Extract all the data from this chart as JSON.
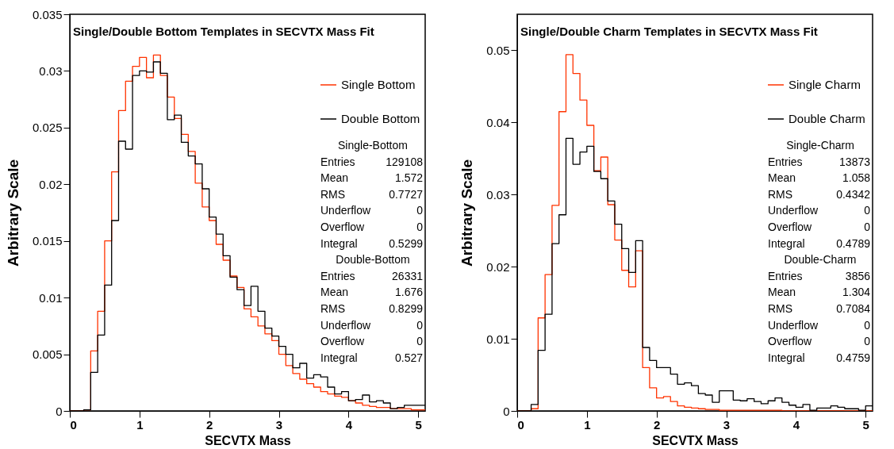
{
  "chart_data": [
    {
      "type": "histogram",
      "title": "Single/Double Bottom Templates in SECVTX Mass Fit",
      "xlabel": "SECVTX Mass",
      "ylabel": "Arbitrary Scale",
      "bins": [
        0,
        0.1,
        0.2,
        0.3,
        0.4,
        0.5,
        0.6,
        0.7,
        0.8,
        0.9,
        1.0,
        1.1,
        1.2,
        1.3,
        1.4,
        1.5,
        1.6,
        1.7,
        1.8,
        1.9,
        2.0,
        2.1,
        2.2,
        2.3,
        2.4,
        2.5,
        2.6,
        2.7,
        2.8,
        2.9,
        3.0,
        3.1,
        3.2,
        3.3,
        3.4,
        3.5,
        3.6,
        3.7,
        3.8,
        3.9,
        4.0,
        4.1,
        4.2,
        4.3,
        4.4,
        4.5,
        4.6,
        4.7,
        4.8,
        4.9,
        5.0,
        5.1
      ],
      "series": [
        {
          "name": "Single Bottom",
          "color": "#ff3300",
          "values": [
            0,
            0,
            0.0001,
            0.0053,
            0.0088,
            0.015,
            0.0211,
            0.0265,
            0.0291,
            0.0304,
            0.0312,
            0.0294,
            0.0314,
            0.0296,
            0.0277,
            0.0258,
            0.0244,
            0.0229,
            0.0201,
            0.018,
            0.0168,
            0.0147,
            0.0133,
            0.0119,
            0.0109,
            0.009,
            0.0083,
            0.0075,
            0.0068,
            0.0062,
            0.005,
            0.004,
            0.0033,
            0.0028,
            0.0024,
            0.0021,
            0.0017,
            0.0015,
            0.0013,
            0.0012,
            0.0009,
            0.0007,
            0.0005,
            0.0004,
            0.0003,
            0.0003,
            0.0002,
            0.0002,
            0.0002,
            0.0001,
            0.0001
          ]
        },
        {
          "name": "Double Bottom",
          "color": "#000000",
          "values": [
            0,
            0,
            0.0001,
            0.0034,
            0.0067,
            0.0111,
            0.0168,
            0.0238,
            0.0231,
            0.0296,
            0.03,
            0.0299,
            0.0308,
            0.0298,
            0.0257,
            0.0261,
            0.0237,
            0.0225,
            0.0218,
            0.0196,
            0.0171,
            0.0156,
            0.0137,
            0.0118,
            0.0107,
            0.0093,
            0.011,
            0.0088,
            0.0073,
            0.0066,
            0.0057,
            0.005,
            0.0038,
            0.0042,
            0.0029,
            0.0032,
            0.003,
            0.0021,
            0.0015,
            0.0017,
            0.0009,
            0.001,
            0.0014,
            0.0008,
            0.0009,
            0.0007,
            0.0002,
            0.0003,
            0.0005,
            0.0005,
            0.0005
          ]
        }
      ],
      "xlim": [
        0,
        5.1
      ],
      "xticks": [
        0,
        1,
        2,
        3,
        4,
        5
      ],
      "ylim": [
        0,
        0.035
      ],
      "yticks": [
        0,
        0.005,
        0.01,
        0.015,
        0.02,
        0.025,
        0.03,
        0.035
      ],
      "legend": "top right",
      "annotations": [
        "Single-Bottom",
        "Entries\t129108",
        "Mean\t1.572",
        "RMS\t0.7727",
        "Underflow\t0",
        "Overflow\t0",
        "Integral\t0.5299",
        "Double-Bottom",
        "Entries\t26331",
        "Mean\t1.676",
        "RMS\t0.8299",
        "Underflow\t0",
        "Overflow\t0",
        "Integral\t0.527"
      ]
    },
    {
      "type": "histogram",
      "title": "Single/Double Charm Templates in SECVTX Mass Fit",
      "xlabel": "SECVTX Mass",
      "ylabel": "Arbitrary Scale",
      "bins": [
        0,
        0.1,
        0.2,
        0.3,
        0.4,
        0.5,
        0.6,
        0.7,
        0.8,
        0.9,
        1.0,
        1.1,
        1.2,
        1.3,
        1.4,
        1.5,
        1.6,
        1.7,
        1.8,
        1.9,
        2.0,
        2.1,
        2.2,
        2.3,
        2.4,
        2.5,
        2.6,
        2.7,
        2.8,
        2.9,
        3.0,
        3.1,
        3.2,
        3.3,
        3.4,
        3.5,
        3.6,
        3.7,
        3.8,
        3.9,
        4.0,
        4.1,
        4.2,
        4.3,
        4.4,
        4.5,
        4.6,
        4.7,
        4.8,
        4.9,
        5.0,
        5.1
      ],
      "series": [
        {
          "name": "Single Charm",
          "color": "#ff3300",
          "values": [
            0,
            0,
            0.0003,
            0.0129,
            0.0189,
            0.0285,
            0.0415,
            0.0494,
            0.0468,
            0.0431,
            0.0396,
            0.0333,
            0.0352,
            0.0286,
            0.0237,
            0.0195,
            0.0172,
            0.0222,
            0.006,
            0.0032,
            0.0018,
            0.002,
            0.0013,
            0.0007,
            0.0005,
            0.0004,
            0.0003,
            0.0002,
            0.0002,
            0.0001,
            0.0001,
            0.0001,
            0.0001,
            0.0001,
            0.0001,
            0.0001,
            0.0001,
            0.0001,
            0,
            0,
            0,
            0,
            0,
            0,
            0,
            0,
            0,
            0,
            0,
            0,
            0
          ]
        },
        {
          "name": "Double Charm",
          "color": "#000000",
          "values": [
            0,
            0,
            0.0009,
            0.0084,
            0.0134,
            0.0232,
            0.0272,
            0.0378,
            0.0342,
            0.0359,
            0.0367,
            0.0332,
            0.0322,
            0.0291,
            0.0259,
            0.0225,
            0.0192,
            0.0236,
            0.0088,
            0.007,
            0.006,
            0.006,
            0.0051,
            0.0037,
            0.0039,
            0.0035,
            0.0024,
            0.0022,
            0.0012,
            0.0028,
            0.0028,
            0.0015,
            0.0014,
            0.0017,
            0.0013,
            0.001,
            0.0014,
            0.0018,
            0.0012,
            0.0008,
            0.0005,
            0.0009,
            0.0001,
            0.0004,
            0.0004,
            0.0007,
            0.0005,
            0.0003,
            0.0003,
            0.0001,
            0.0007
          ]
        }
      ],
      "xlim": [
        0,
        5.1
      ],
      "xticks": [
        0,
        1,
        2,
        3,
        4,
        5
      ],
      "ylim": [
        0,
        0.055
      ],
      "yticks": [
        0,
        0.01,
        0.02,
        0.03,
        0.04,
        0.05
      ],
      "legend": "top right",
      "annotations": [
        "Single-Charm",
        "Entries\t13873",
        "Mean\t1.058",
        "RMS\t0.4342",
        "Underflow\t0",
        "Overflow\t0",
        "Integral\t0.4789",
        "Double-Charm",
        "Entries\t3856",
        "Mean\t1.304",
        "RMS\t0.7084",
        "Underflow\t0",
        "Overflow\t0",
        "Integral\t0.4759"
      ]
    }
  ]
}
